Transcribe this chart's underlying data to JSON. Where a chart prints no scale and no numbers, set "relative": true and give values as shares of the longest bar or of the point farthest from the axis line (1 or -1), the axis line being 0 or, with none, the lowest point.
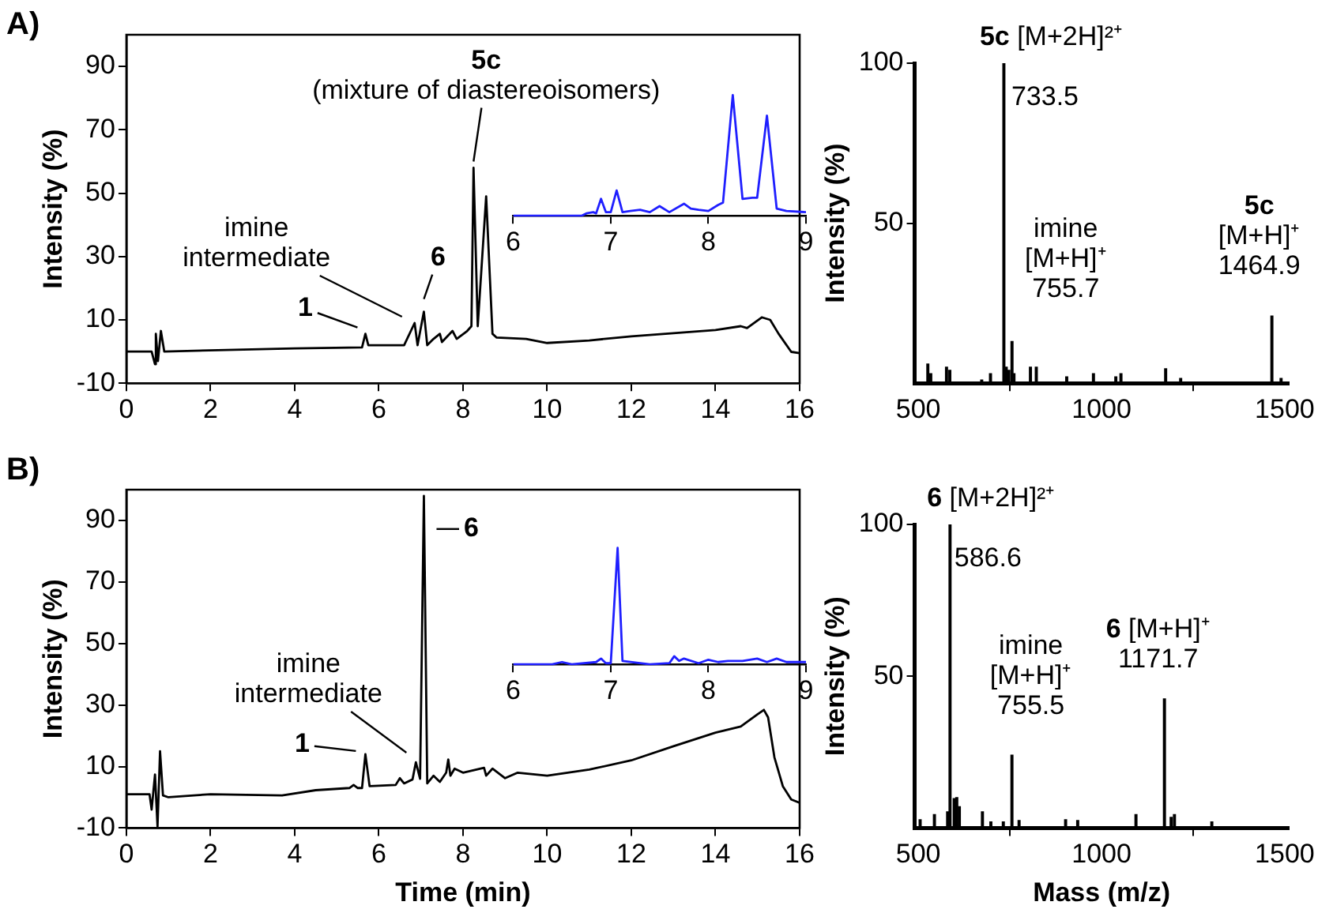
{
  "chart_data": [
    {
      "type": "line",
      "title": "A)",
      "ylabel": "Intensity (%)",
      "color": "#000000",
      "marker": "none",
      "grid": false,
      "legend": false,
      "x": [
        0,
        0.6,
        0.68,
        0.7,
        0.75,
        0.82,
        0.9,
        4,
        5.6,
        5.68,
        5.75,
        6.6,
        6.85,
        6.92,
        7.07,
        7.15,
        7.3,
        7.45,
        7.5,
        7.75,
        7.85,
        8.1,
        8.2,
        8.25,
        8.35,
        8.55,
        8.7,
        8.8,
        9.5,
        10,
        11,
        12,
        14,
        14.6,
        14.75,
        15.1,
        15.3,
        15.5,
        15.8,
        16
      ],
      "values": [
        0,
        0,
        -4,
        5.6,
        -3,
        6.5,
        0,
        1,
        1.3,
        5.6,
        2,
        2,
        9,
        2,
        12.6,
        2,
        4,
        5.6,
        3,
        6.5,
        4,
        6.5,
        8,
        58,
        8,
        49,
        5.6,
        4.4,
        4,
        2.7,
        3.5,
        4.8,
        6.8,
        8,
        7.4,
        10.8,
        10,
        5.6,
        -0.1,
        -0.5
      ],
      "xlim": [
        0,
        16
      ],
      "xticks": [
        0,
        2,
        4,
        6,
        8,
        10,
        12,
        14,
        16
      ],
      "ylim": [
        -10,
        100
      ],
      "yticks": [
        -10,
        10,
        30,
        50,
        70,
        90
      ],
      "annotations": [
        {
          "text": "1",
          "x": 5.68,
          "y": 5.6
        },
        {
          "text": "6",
          "x": 7.07,
          "y": 12.6
        },
        {
          "text": "imine\nintermediate",
          "x": 6.85,
          "y": 9
        },
        {
          "text": "5c\n(mixture of diastereoisomers)",
          "x": 8.25,
          "y": 58
        }
      ]
    },
    {
      "type": "line",
      "relative": true,
      "color": "#1f1fff",
      "marker": "none",
      "grid": false,
      "legend": false,
      "x": [
        6,
        6.7,
        6.75,
        6.82,
        6.85,
        6.9,
        6.95,
        7,
        7.06,
        7.12,
        7.2,
        7.3,
        7.4,
        7.5,
        7.6,
        7.75,
        7.82,
        7.9,
        8,
        8.1,
        8.15,
        8.25,
        8.35,
        8.45,
        8.5,
        8.6,
        8.7,
        8.8,
        9
      ],
      "values": [
        0,
        0,
        0.02,
        0.03,
        0.02,
        0.14,
        0.03,
        0.03,
        0.21,
        0.03,
        0.04,
        0.05,
        0.03,
        0.08,
        0.03,
        0.1,
        0.06,
        0.05,
        0.04,
        0.09,
        0.11,
        1,
        0.14,
        0.15,
        0.15,
        0.83,
        0.06,
        0.04,
        0.03
      ],
      "xlim": [
        6,
        9
      ],
      "xticks": [
        6,
        7,
        8,
        9
      ]
    },
    {
      "type": "bar",
      "ylabel": "Intensity (%)",
      "color": "#000000",
      "grid": false,
      "legend": false,
      "x": [
        526,
        534,
        577,
        586,
        673,
        697,
        733.5,
        740,
        747,
        755.7,
        761,
        806,
        822,
        905,
        978,
        1039,
        1053,
        1175,
        1216,
        1464.9,
        1490
      ],
      "values": [
        6,
        3,
        5,
        4,
        1,
        3,
        100,
        5,
        4,
        13,
        3,
        5,
        5,
        2,
        3,
        2,
        3,
        4.5,
        1.5,
        21,
        1.5
      ],
      "xlim": [
        490,
        1510
      ],
      "xticks": [
        500,
        1000,
        1500
      ],
      "ylim": [
        0,
        100
      ],
      "yticks": [
        50,
        100
      ],
      "annotations": [
        {
          "text": "5c [M+2H]²⁺",
          "x": 733.5,
          "y": 100
        },
        {
          "text": "733.5",
          "x": 733.5,
          "y": 100
        },
        {
          "text": "imine\n[M+H]⁺\n755.7",
          "x": 755.7,
          "y": 13
        },
        {
          "text": "5c\n[M+H]⁺\n1464.9",
          "x": 1464.9,
          "y": 21
        }
      ]
    },
    {
      "type": "line",
      "title": "B)",
      "xlabel": "Time (min)",
      "ylabel": "Intensity (%)",
      "color": "#000000",
      "marker": "none",
      "grid": false,
      "legend": false,
      "x": [
        0,
        0.55,
        0.6,
        0.68,
        0.74,
        0.8,
        0.87,
        1,
        2,
        3.7,
        4.5,
        5.3,
        5.4,
        5.5,
        5.6,
        5.68,
        5.78,
        6.4,
        6.5,
        6.6,
        6.8,
        6.88,
        6.98,
        7.07,
        7.15,
        7.3,
        7.45,
        7.6,
        7.65,
        7.7,
        7.8,
        8,
        8.5,
        8.55,
        8.7,
        9,
        9.3,
        10,
        11,
        12,
        13,
        14,
        14.6,
        15,
        15.15,
        15.25,
        15.4,
        15.6,
        15.8,
        16
      ],
      "values": [
        1,
        1,
        -4,
        7.4,
        -9.5,
        15,
        0.6,
        0,
        1,
        0.6,
        2.3,
        3,
        4,
        3,
        3,
        14,
        3.6,
        4,
        6.2,
        4.5,
        5.8,
        11.4,
        6,
        98,
        4.5,
        7,
        5,
        8,
        12.3,
        7,
        9.3,
        8,
        9.6,
        7,
        9.3,
        6.2,
        8,
        7,
        9,
        12,
        16.6,
        21,
        23,
        27,
        28.4,
        26,
        13,
        3.6,
        -0.7,
        -1.8
      ],
      "xlim": [
        0,
        16
      ],
      "xticks": [
        0,
        2,
        4,
        6,
        8,
        10,
        12,
        14,
        16
      ],
      "ylim": [
        -10,
        100
      ],
      "yticks": [
        -10,
        10,
        30,
        50,
        70,
        90
      ],
      "annotations": [
        {
          "text": "6",
          "x": 7.07,
          "y": 98
        },
        {
          "text": "imine\nintermediate",
          "x": 6.88,
          "y": 11.4
        },
        {
          "text": "1",
          "x": 5.68,
          "y": 14
        }
      ]
    },
    {
      "type": "line",
      "relative": true,
      "color": "#1f1fff",
      "marker": "none",
      "grid": false,
      "legend": false,
      "x": [
        6,
        6.4,
        6.5,
        6.6,
        6.85,
        6.9,
        6.95,
        7,
        7.07,
        7.12,
        7.3,
        7.4,
        7.6,
        7.65,
        7.7,
        7.75,
        7.9,
        8,
        8.1,
        8.2,
        8.35,
        8.5,
        8.6,
        8.7,
        8.8,
        9
      ],
      "values": [
        0,
        0,
        0.02,
        0,
        0.02,
        0.05,
        0.01,
        0.01,
        1,
        0.03,
        0.01,
        0,
        0.01,
        0.07,
        0.03,
        0.05,
        0.01,
        0.04,
        0.02,
        0.03,
        0.03,
        0.05,
        0.02,
        0.05,
        0.02,
        0.02
      ],
      "xlim": [
        6,
        9
      ],
      "xticks": [
        6,
        7,
        8,
        9
      ]
    },
    {
      "type": "bar",
      "xlabel": "Mass (m/z)",
      "ylabel": "Intensity (%)",
      "color": "#000000",
      "grid": false,
      "legend": false,
      "x": [
        505,
        544,
        580,
        586.6,
        598,
        605,
        612,
        675,
        698,
        732,
        755.5,
        775,
        902,
        935,
        1094,
        1171.7,
        1190,
        1199,
        1301
      ],
      "values": [
        2.7,
        4.4,
        5.3,
        100,
        9.7,
        10,
        7,
        5.3,
        2,
        2,
        24,
        2.5,
        2.7,
        2.5,
        4.4,
        42.5,
        3.5,
        4.4,
        2
      ],
      "xlim": [
        490,
        1510
      ],
      "xticks": [
        500,
        1000,
        1500
      ],
      "ylim": [
        0,
        100
      ],
      "yticks": [
        50,
        100
      ],
      "annotations": [
        {
          "text": "6 [M+2H]²⁺",
          "x": 586.6,
          "y": 100
        },
        {
          "text": "586.6",
          "x": 586.6,
          "y": 100
        },
        {
          "text": "imine\n[M+H]⁺\n755.5",
          "x": 755.5,
          "y": 24
        },
        {
          "text": "6 [M+H]⁺\n1171.7",
          "x": 1171.7,
          "y": 42.5
        }
      ]
    }
  ]
}
